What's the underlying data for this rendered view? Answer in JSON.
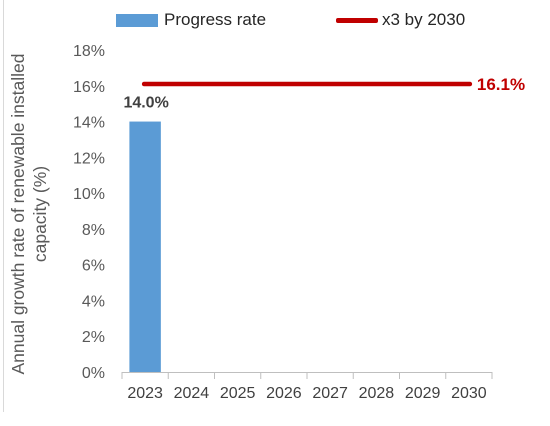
{
  "chart_data": {
    "type": "bar",
    "categories": [
      "2023",
      "2024",
      "2025",
      "2026",
      "2027",
      "2028",
      "2029",
      "2030"
    ],
    "series": [
      {
        "name": "Progress rate",
        "kind": "bar",
        "values": [
          14.0,
          null,
          null,
          null,
          null,
          null,
          null,
          null
        ],
        "color": "#5b9bd5"
      },
      {
        "name": "x3 by 2030",
        "kind": "line",
        "values": [
          16.1,
          16.1,
          16.1,
          16.1,
          16.1,
          16.1,
          16.1,
          16.1
        ],
        "color": "#c00000"
      }
    ],
    "data_labels": {
      "bar_2023": "14.0%",
      "line_end": "16.1%"
    },
    "ylabel": "Annual growth rate of renewable installed capacity (%)",
    "ylim": [
      0,
      18
    ],
    "yticks": [
      "0%",
      "2%",
      "4%",
      "6%",
      "8%",
      "10%",
      "12%",
      "14%",
      "16%",
      "18%"
    ],
    "grid": false,
    "legend_position": "top"
  }
}
